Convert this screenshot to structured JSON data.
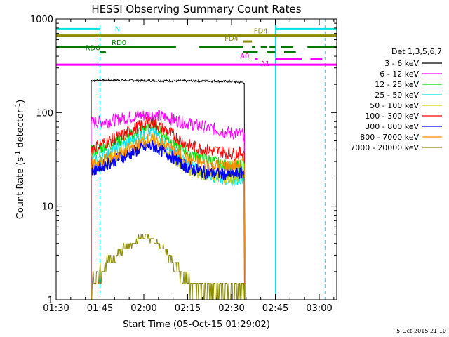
{
  "chart_data": {
    "type": "line",
    "title": "HESSI Observing Summary Count Rates",
    "xlabel": "Start Time (05-Oct-15 01:29:02)",
    "ylabel_main": "Count Rate (s",
    "ylabel_sup1": "-1",
    "ylabel_mid": " detector",
    "ylabel_sup2": "-1",
    "ylabel_end": ")",
    "yscale": "log",
    "ylim": [
      1,
      1000
    ],
    "xlim_minutes": [
      1.0,
      97.0
    ],
    "x_ticks": [
      {
        "label": "01:30",
        "min": 1
      },
      {
        "label": "01:45",
        "min": 16
      },
      {
        "label": "02:00",
        "min": 31
      },
      {
        "label": "02:15",
        "min": 46
      },
      {
        "label": "02:30",
        "min": 61
      },
      {
        "label": "02:45",
        "min": 76
      },
      {
        "label": "03:00",
        "min": 91
      }
    ],
    "y_ticks": [
      {
        "label": "1",
        "value": 1
      },
      {
        "label": "10",
        "value": 10
      },
      {
        "label": "100",
        "value": 100
      },
      {
        "label": "1000",
        "value": 1000
      }
    ],
    "legend_title": "Det 1,3,5,6,7",
    "legend_position": "right",
    "series": [
      {
        "name": "3 - 6 keV",
        "color": "#000000",
        "points": [
          [
            13.0,
            220
          ],
          [
            20,
            222
          ],
          [
            30,
            220
          ],
          [
            40,
            218
          ],
          [
            50,
            218
          ],
          [
            60,
            215
          ],
          [
            65.5,
            210
          ]
        ]
      },
      {
        "name": "6 - 12 keV",
        "color": "#ff00ff",
        "points": [
          [
            13.0,
            78
          ],
          [
            20,
            82
          ],
          [
            25,
            88
          ],
          [
            30,
            93
          ],
          [
            34,
            94
          ],
          [
            38,
            90
          ],
          [
            45,
            78
          ],
          [
            52,
            70
          ],
          [
            58,
            63
          ],
          [
            62,
            60
          ],
          [
            65.5,
            58
          ]
        ]
      },
      {
        "name": "12 - 25 keV",
        "color": "#00dd00",
        "points": [
          [
            13.0,
            38
          ],
          [
            18,
            44
          ],
          [
            24,
            52
          ],
          [
            29,
            62
          ],
          [
            33,
            72
          ],
          [
            35,
            70
          ],
          [
            38,
            58
          ],
          [
            42,
            45
          ],
          [
            46,
            38
          ],
          [
            52,
            32
          ],
          [
            58,
            28
          ],
          [
            62,
            26
          ],
          [
            65.5,
            28
          ]
        ]
      },
      {
        "name": "25 - 50 keV",
        "color": "#00e5e5",
        "points": [
          [
            13.0,
            30
          ],
          [
            18,
            36
          ],
          [
            24,
            45
          ],
          [
            29,
            55
          ],
          [
            33,
            62
          ],
          [
            35,
            60
          ],
          [
            38,
            48
          ],
          [
            42,
            36
          ],
          [
            46,
            28
          ],
          [
            52,
            22
          ],
          [
            58,
            20
          ],
          [
            62,
            19
          ],
          [
            65.5,
            21
          ]
        ]
      },
      {
        "name": "50 - 100 keV",
        "color": "#cccc00",
        "points": [
          [
            13.0,
            26
          ],
          [
            18,
            30
          ],
          [
            24,
            38
          ],
          [
            29,
            46
          ],
          [
            33,
            52
          ],
          [
            35,
            48
          ],
          [
            38,
            40
          ],
          [
            42,
            32
          ],
          [
            46,
            25
          ],
          [
            52,
            22
          ],
          [
            58,
            20
          ],
          [
            62,
            20
          ],
          [
            65.5,
            22
          ]
        ]
      },
      {
        "name": "100 - 300 keV",
        "color": "#ff0000",
        "points": [
          [
            13.0,
            42
          ],
          [
            18,
            48
          ],
          [
            24,
            58
          ],
          [
            29,
            70
          ],
          [
            33,
            80
          ],
          [
            35,
            76
          ],
          [
            38,
            66
          ],
          [
            42,
            55
          ],
          [
            46,
            45
          ],
          [
            52,
            40
          ],
          [
            58,
            38
          ],
          [
            62,
            36
          ],
          [
            65.5,
            38
          ]
        ]
      },
      {
        "name": "300 - 800 keV",
        "color": "#0000ff",
        "points": [
          [
            13.0,
            24
          ],
          [
            18,
            28
          ],
          [
            24,
            34
          ],
          [
            29,
            40
          ],
          [
            33,
            44
          ],
          [
            35,
            43
          ],
          [
            38,
            38
          ],
          [
            42,
            32
          ],
          [
            46,
            26
          ],
          [
            52,
            23
          ],
          [
            58,
            22
          ],
          [
            62,
            22
          ],
          [
            65.5,
            23
          ]
        ]
      },
      {
        "name": "800 - 7000 keV",
        "color": "#ff8c00",
        "points": [
          [
            13.0,
            28
          ],
          [
            18,
            32
          ],
          [
            24,
            38
          ],
          [
            29,
            46
          ],
          [
            33,
            52
          ],
          [
            35,
            51
          ],
          [
            38,
            45
          ],
          [
            42,
            38
          ],
          [
            46,
            32
          ],
          [
            52,
            28
          ],
          [
            58,
            27
          ],
          [
            62,
            27
          ],
          [
            65.5,
            29
          ]
        ]
      },
      {
        "name": "7000 - 20000 keV",
        "color": "#8b8b00",
        "points": [
          [
            13.0,
            1.5
          ],
          [
            16,
            2.0
          ],
          [
            20,
            2.8
          ],
          [
            25,
            3.6
          ],
          [
            28,
            4.2
          ],
          [
            31,
            4.8
          ],
          [
            34,
            4.4
          ],
          [
            38,
            3.4
          ],
          [
            42,
            2.4
          ],
          [
            46,
            1.6
          ],
          [
            52,
            1.3
          ],
          [
            58,
            1.2
          ],
          [
            65.5,
            1.3
          ]
        ]
      }
    ],
    "flag_bars": [
      {
        "label": "N",
        "color": "#00e5e5",
        "value": 780,
        "segments": [
          [
            1,
            16
          ],
          [
            76,
            97
          ]
        ]
      },
      {
        "label": "FD4",
        "color": "#8b8b00",
        "value": 665,
        "segments": [
          [
            1,
            97
          ]
        ]
      },
      {
        "label": "FD4",
        "color": "#8b8b00",
        "value": 575,
        "segments": [
          [
            65,
            68
          ]
        ]
      },
      {
        "label": "RD0",
        "color": "#007700",
        "value": 500,
        "segments": [
          [
            1,
            42
          ],
          [
            50,
            65
          ],
          [
            68,
            69
          ],
          [
            71,
            73
          ],
          [
            74,
            76
          ],
          [
            78,
            82
          ],
          [
            87,
            97
          ]
        ]
      },
      {
        "label": "RD6",
        "color": "#007700",
        "value": 440,
        "segments": [
          [
            16,
            18
          ],
          [
            65,
            70
          ],
          [
            73,
            76
          ],
          [
            79,
            83
          ]
        ]
      },
      {
        "label": "A0",
        "color": "#ff00ff",
        "value": 375,
        "segments": [
          [
            69,
            70
          ],
          [
            76,
            85
          ],
          [
            88,
            92
          ]
        ]
      },
      {
        "label": "A1",
        "color": "#ff00ff",
        "value": 325,
        "segments": [
          [
            1,
            97
          ]
        ]
      }
    ],
    "vlines": [
      {
        "min": 1.0,
        "color": "#00e5e5",
        "style": "solid"
      },
      {
        "min": 16.0,
        "color": "#00e5e5",
        "style": "dashed"
      },
      {
        "min": 76.0,
        "color": "#00e5e5",
        "style": "solid"
      },
      {
        "min": 93.0,
        "color": "#00e5e5",
        "style": "dashed"
      }
    ]
  },
  "footer": {
    "timestamp": "5-Oct-2015 21:10"
  }
}
